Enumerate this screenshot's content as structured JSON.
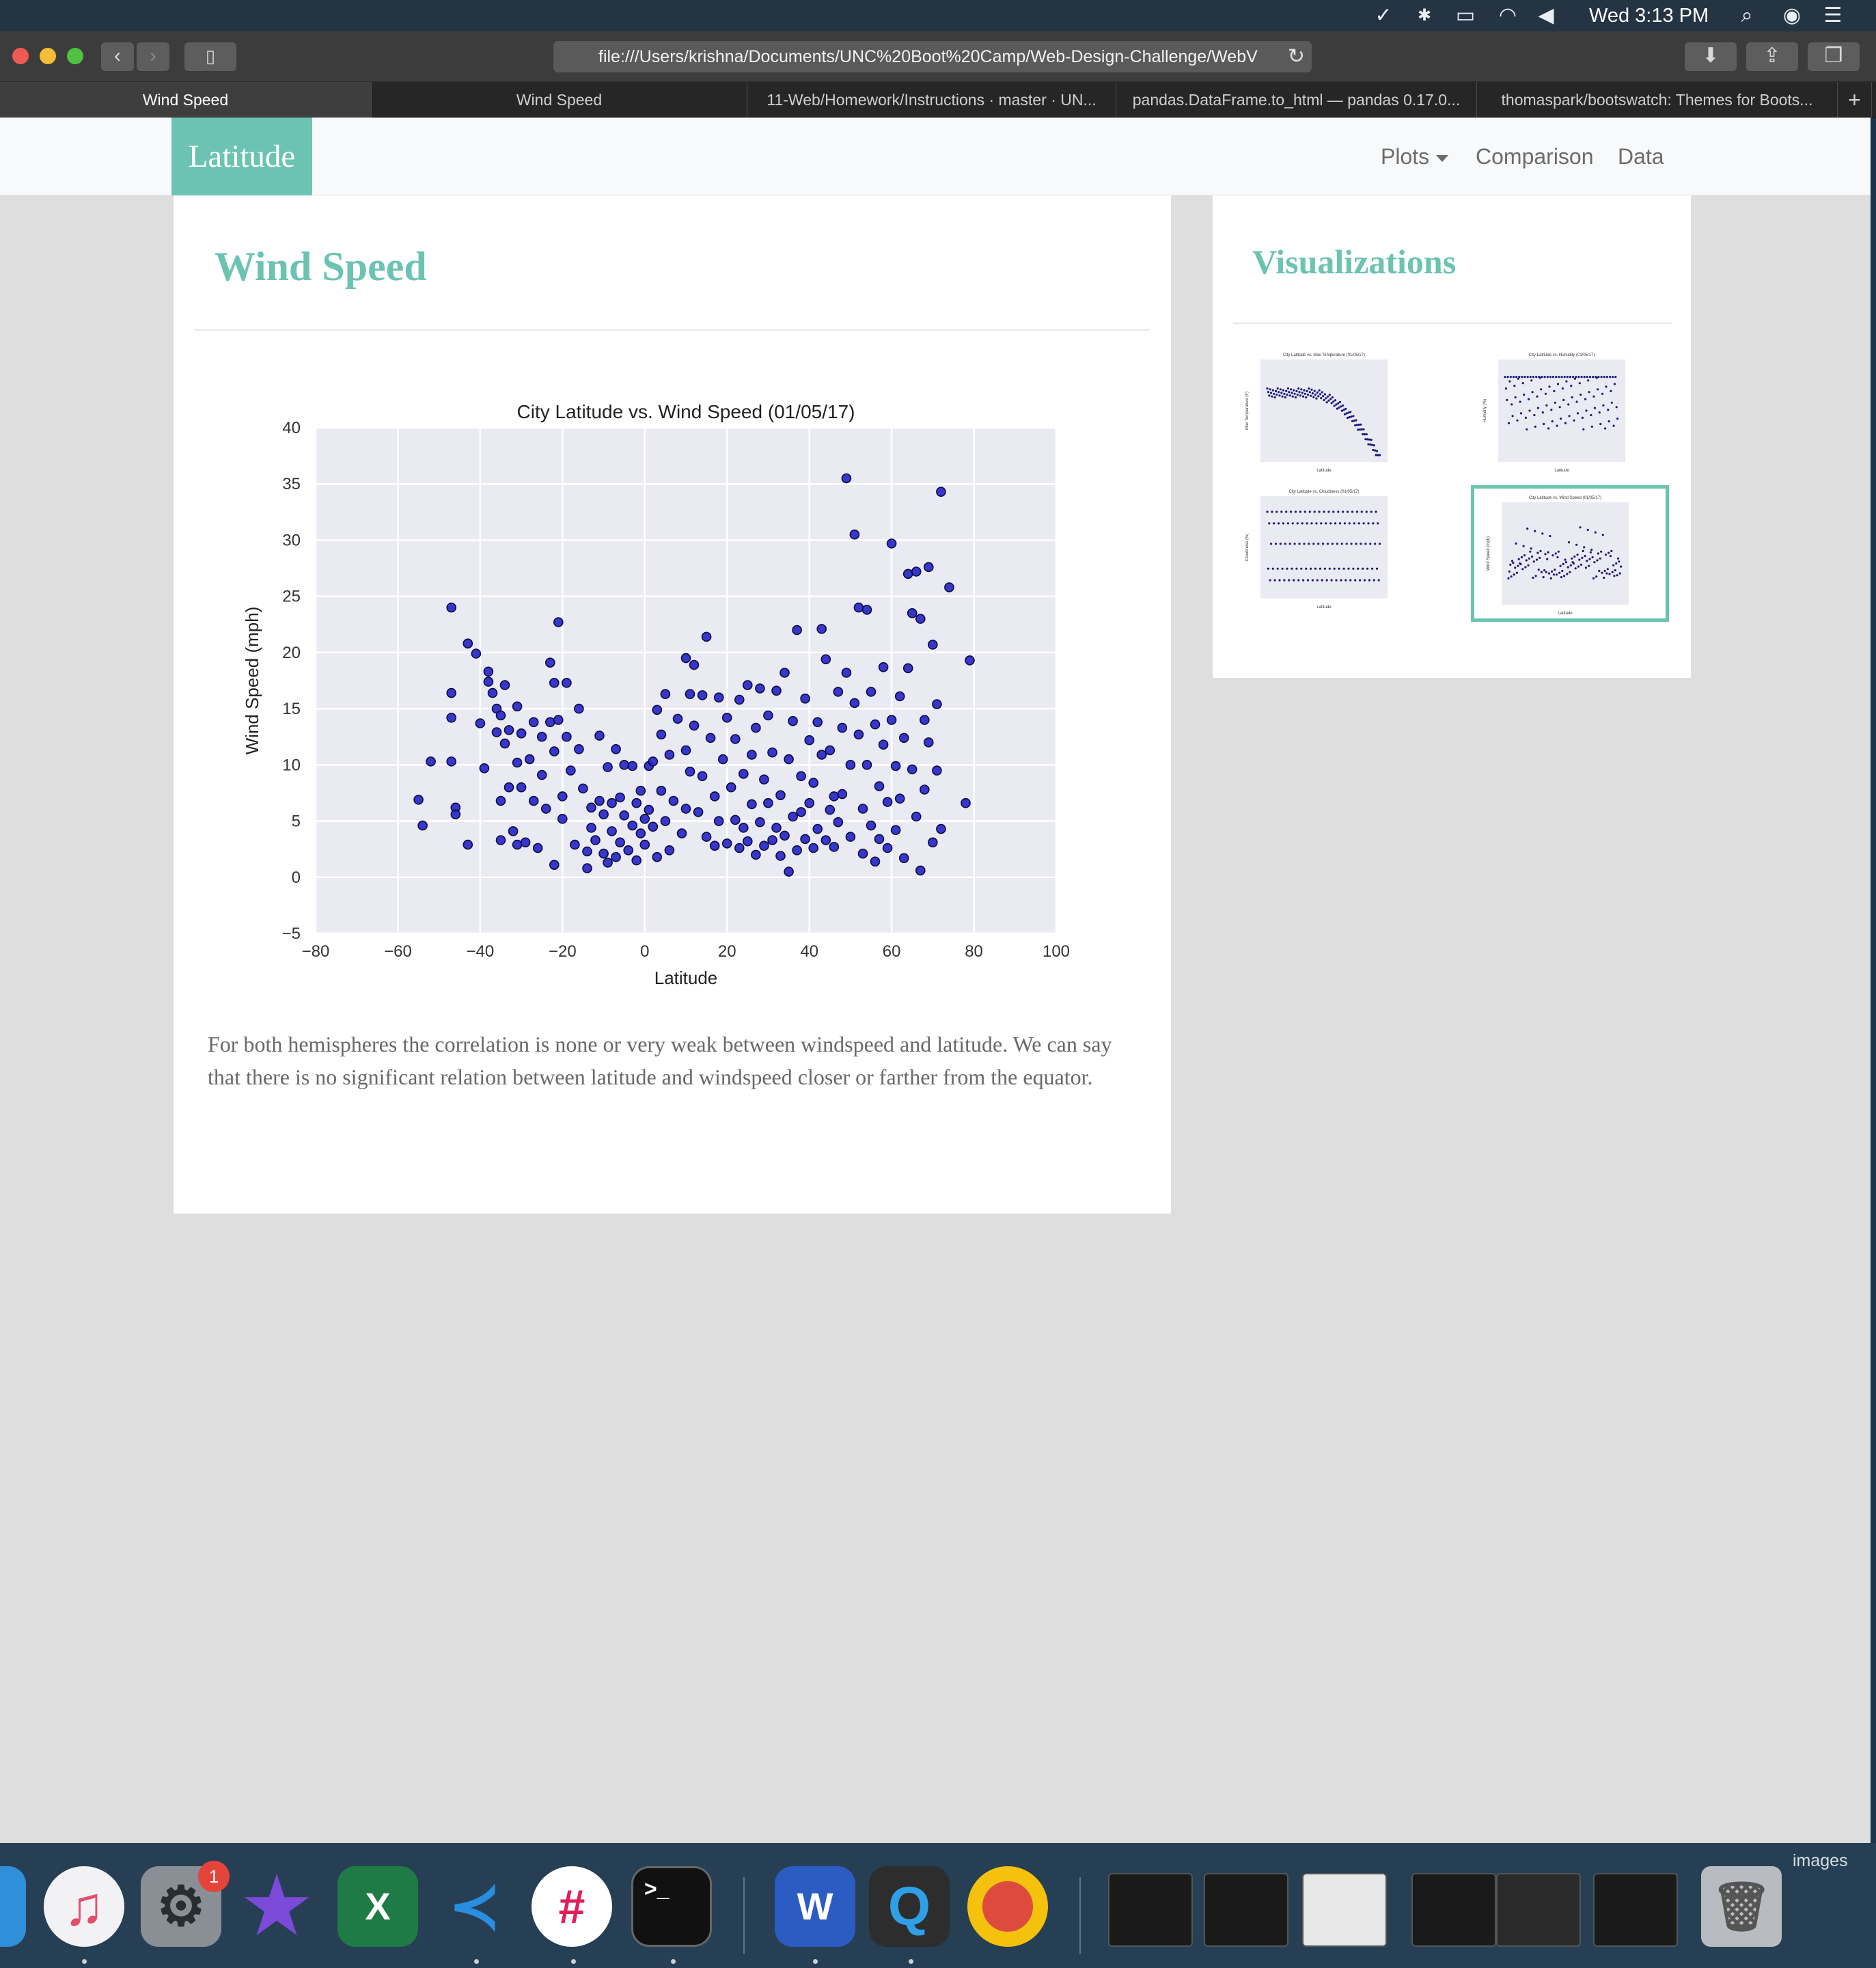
{
  "menubar": {
    "clock": "Wed 3:13 PM",
    "icons": [
      "checkmark-app-icon",
      "bluetooth-icon",
      "airplay-icon",
      "wifi-icon",
      "volume-icon",
      "spotlight-search-icon",
      "siri-icon",
      "notification-center-icon"
    ]
  },
  "browser": {
    "url": "file:///Users/krishna/Documents/UNC%20Boot%20Camp/Web-Design-Challenge/WebV",
    "tabs": [
      {
        "label": "Wind Speed",
        "active": true
      },
      {
        "label": "Wind Speed",
        "active": false
      },
      {
        "label": "11-Web/Homework/Instructions · master · UN...",
        "active": false
      },
      {
        "label": "pandas.DataFrame.to_html — pandas 0.17.0...",
        "active": false
      },
      {
        "label": "thomaspark/bootswatch: Themes for Boots...",
        "active": false
      }
    ],
    "new_tab": "+"
  },
  "navbar": {
    "brand": "Latitude",
    "links": {
      "plots": "Plots",
      "comparison": "Comparison",
      "data": "Data"
    }
  },
  "main": {
    "title": "Wind Speed",
    "text": "For both hemispheres the correlation is none or very weak between windspeed and latitude. We can say that there is no significant relation between latitude and windspeed closer or farther from the equator."
  },
  "sidebar": {
    "title": "Visualizations",
    "thumbnails": [
      {
        "title": "City Latitude vs. Max Temperature (01/05/17)",
        "xlabel": "Latitude",
        "ylabel": "Max Temperature (F)",
        "selected": false
      },
      {
        "title": "City Latitude vs. Humidity (01/05/17)",
        "xlabel": "Latitude",
        "ylabel": "Humidity (%)",
        "selected": false
      },
      {
        "title": "City Latitude vs. Cloudiness (01/05/17)",
        "xlabel": "Latitude",
        "ylabel": "Cloudiness (%)",
        "selected": false
      },
      {
        "title": "City Latitude vs. Wind Speed (01/05/17)",
        "xlabel": "Latitude",
        "ylabel": "Wind Speed (mph)",
        "selected": true
      }
    ]
  },
  "dock": {
    "badge": "1",
    "images_label": "images",
    "apps": [
      "itunes-icon",
      "system-preferences-icon",
      "imovie-icon",
      "excel-icon",
      "vscode-icon",
      "slack-icon",
      "terminal-icon",
      "word-icon",
      "quip-icon",
      "chrome-icon"
    ]
  },
  "colors": {
    "accent": "#6cc3b2",
    "point_fill": "#2424c8",
    "point_edge": "#0a0a40",
    "plot_bg": "#eaeaf2"
  },
  "chart_data": {
    "type": "scatter",
    "title": "City Latitude vs. Wind Speed (01/05/17)",
    "xlabel": "Latitude",
    "ylabel": "Wind Speed (mph)",
    "xlim": [
      -80,
      100
    ],
    "ylim": [
      -5,
      40
    ],
    "xticks": [
      -80,
      -60,
      -40,
      -20,
      0,
      20,
      40,
      60,
      80,
      100
    ],
    "yticks": [
      -5,
      0,
      5,
      10,
      15,
      20,
      25,
      30,
      35,
      40
    ],
    "grid": true,
    "points": [
      [
        -55,
        6.9
      ],
      [
        -54,
        4.6
      ],
      [
        -52,
        10.3
      ],
      [
        -47,
        24.0
      ],
      [
        -47,
        16.4
      ],
      [
        -47,
        14.2
      ],
      [
        -47,
        10.3
      ],
      [
        -46,
        6.2
      ],
      [
        -46,
        5.6
      ],
      [
        -43,
        20.8
      ],
      [
        -43,
        2.9
      ],
      [
        -41,
        19.9
      ],
      [
        -40,
        13.7
      ],
      [
        -39,
        9.7
      ],
      [
        -38,
        18.3
      ],
      [
        -38,
        17.4
      ],
      [
        -37,
        16.4
      ],
      [
        -36,
        12.9
      ],
      [
        -36,
        15.0
      ],
      [
        -35,
        14.4
      ],
      [
        -35,
        6.8
      ],
      [
        -35,
        3.3
      ],
      [
        -34,
        17.1
      ],
      [
        -34,
        11.9
      ],
      [
        -33,
        13.1
      ],
      [
        -33,
        8.0
      ],
      [
        -32,
        4.1
      ],
      [
        -31,
        15.2
      ],
      [
        -31,
        10.2
      ],
      [
        -31,
        2.9
      ],
      [
        -30,
        12.8
      ],
      [
        -30,
        8.0
      ],
      [
        -29,
        3.1
      ],
      [
        -28,
        10.5
      ],
      [
        -27,
        13.8
      ],
      [
        -27,
        6.8
      ],
      [
        -26,
        2.6
      ],
      [
        -25,
        12.5
      ],
      [
        -25,
        9.1
      ],
      [
        -24,
        6.1
      ],
      [
        -23,
        19.1
      ],
      [
        -23,
        13.8
      ],
      [
        -22,
        17.3
      ],
      [
        -22,
        11.2
      ],
      [
        -22,
        1.1
      ],
      [
        -21,
        22.7
      ],
      [
        -21,
        14.0
      ],
      [
        -20,
        7.2
      ],
      [
        -20,
        5.2
      ],
      [
        -19,
        17.3
      ],
      [
        -19,
        12.5
      ],
      [
        -18,
        9.5
      ],
      [
        -17,
        2.9
      ],
      [
        -16,
        15.0
      ],
      [
        -16,
        11.4
      ],
      [
        -15,
        7.9
      ],
      [
        -14,
        2.3
      ],
      [
        -14,
        0.8
      ],
      [
        -13,
        6.2
      ],
      [
        -13,
        4.4
      ],
      [
        -12,
        3.3
      ],
      [
        -11,
        12.6
      ],
      [
        -11,
        6.8
      ],
      [
        -10,
        5.6
      ],
      [
        -10,
        2.1
      ],
      [
        -9,
        9.8
      ],
      [
        -9,
        1.3
      ],
      [
        -8,
        6.6
      ],
      [
        -8,
        4.1
      ],
      [
        -7,
        11.4
      ],
      [
        -7,
        1.8
      ],
      [
        -6,
        7.1
      ],
      [
        -6,
        3.1
      ],
      [
        -5,
        10.0
      ],
      [
        -5,
        5.5
      ],
      [
        -4,
        2.4
      ],
      [
        -3,
        9.9
      ],
      [
        -3,
        4.6
      ],
      [
        -2,
        6.6
      ],
      [
        -2,
        1.5
      ],
      [
        -1,
        3.9
      ],
      [
        -1,
        7.7
      ],
      [
        0,
        5.2
      ],
      [
        0,
        2.9
      ],
      [
        1,
        9.9
      ],
      [
        1,
        6.0
      ],
      [
        2,
        10.3
      ],
      [
        2,
        4.5
      ],
      [
        3,
        14.9
      ],
      [
        3,
        1.8
      ],
      [
        4,
        12.7
      ],
      [
        4,
        7.7
      ],
      [
        5,
        16.3
      ],
      [
        5,
        5.0
      ],
      [
        6,
        10.9
      ],
      [
        6,
        2.4
      ],
      [
        7,
        6.8
      ],
      [
        8,
        14.1
      ],
      [
        9,
        3.9
      ],
      [
        10,
        19.5
      ],
      [
        10,
        11.3
      ],
      [
        10,
        6.1
      ],
      [
        11,
        16.3
      ],
      [
        11,
        9.4
      ],
      [
        12,
        18.9
      ],
      [
        12,
        13.5
      ],
      [
        13,
        5.8
      ],
      [
        14,
        16.2
      ],
      [
        14,
        9.0
      ],
      [
        15,
        21.4
      ],
      [
        15,
        3.6
      ],
      [
        16,
        12.4
      ],
      [
        17,
        7.2
      ],
      [
        17,
        2.8
      ],
      [
        18,
        16.0
      ],
      [
        18,
        5.0
      ],
      [
        19,
        10.5
      ],
      [
        20,
        14.2
      ],
      [
        20,
        3.0
      ],
      [
        21,
        8.0
      ],
      [
        22,
        12.3
      ],
      [
        22,
        5.1
      ],
      [
        23,
        15.8
      ],
      [
        23,
        2.6
      ],
      [
        24,
        9.2
      ],
      [
        24,
        4.4
      ],
      [
        25,
        17.1
      ],
      [
        25,
        3.2
      ],
      [
        26,
        10.9
      ],
      [
        26,
        6.5
      ],
      [
        27,
        13.3
      ],
      [
        27,
        2.0
      ],
      [
        28,
        16.8
      ],
      [
        28,
        4.9
      ],
      [
        29,
        8.7
      ],
      [
        29,
        2.8
      ],
      [
        30,
        14.4
      ],
      [
        30,
        6.6
      ],
      [
        31,
        11.1
      ],
      [
        31,
        3.3
      ],
      [
        32,
        16.6
      ],
      [
        32,
        4.4
      ],
      [
        33,
        7.3
      ],
      [
        33,
        1.9
      ],
      [
        34,
        18.2
      ],
      [
        34,
        3.7
      ],
      [
        35,
        10.5
      ],
      [
        35,
        0.5
      ],
      [
        36,
        13.9
      ],
      [
        36,
        5.4
      ],
      [
        37,
        22.0
      ],
      [
        37,
        2.4
      ],
      [
        38,
        9.0
      ],
      [
        38,
        5.8
      ],
      [
        39,
        15.9
      ],
      [
        39,
        3.4
      ],
      [
        40,
        12.2
      ],
      [
        40,
        6.6
      ],
      [
        41,
        8.4
      ],
      [
        41,
        2.6
      ],
      [
        42,
        13.8
      ],
      [
        42,
        4.3
      ],
      [
        43,
        22.1
      ],
      [
        43,
        10.9
      ],
      [
        44,
        19.4
      ],
      [
        44,
        3.3
      ],
      [
        45,
        11.3
      ],
      [
        45,
        6.0
      ],
      [
        46,
        7.2
      ],
      [
        46,
        2.7
      ],
      [
        47,
        16.5
      ],
      [
        47,
        4.9
      ],
      [
        48,
        13.3
      ],
      [
        48,
        7.4
      ],
      [
        49,
        35.5
      ],
      [
        49,
        18.2
      ],
      [
        50,
        10.0
      ],
      [
        50,
        3.6
      ],
      [
        51,
        30.5
      ],
      [
        51,
        15.5
      ],
      [
        52,
        24.0
      ],
      [
        52,
        12.7
      ],
      [
        53,
        6.1
      ],
      [
        53,
        2.1
      ],
      [
        54,
        23.8
      ],
      [
        54,
        10.0
      ],
      [
        55,
        16.5
      ],
      [
        55,
        4.6
      ],
      [
        56,
        13.6
      ],
      [
        56,
        1.4
      ],
      [
        57,
        8.1
      ],
      [
        57,
        3.4
      ],
      [
        58,
        18.7
      ],
      [
        58,
        11.8
      ],
      [
        59,
        6.7
      ],
      [
        59,
        2.6
      ],
      [
        60,
        29.7
      ],
      [
        60,
        14.0
      ],
      [
        61,
        9.9
      ],
      [
        61,
        4.2
      ],
      [
        62,
        16.1
      ],
      [
        62,
        7.0
      ],
      [
        63,
        12.4
      ],
      [
        63,
        1.7
      ],
      [
        64,
        27.0
      ],
      [
        64,
        18.6
      ],
      [
        65,
        23.5
      ],
      [
        65,
        9.6
      ],
      [
        66,
        27.2
      ],
      [
        66,
        5.4
      ],
      [
        67,
        23.0
      ],
      [
        67,
        0.6
      ],
      [
        68,
        14.0
      ],
      [
        68,
        7.8
      ],
      [
        69,
        27.6
      ],
      [
        69,
        12.0
      ],
      [
        70,
        20.7
      ],
      [
        70,
        3.1
      ],
      [
        71,
        15.4
      ],
      [
        71,
        9.5
      ],
      [
        72,
        34.3
      ],
      [
        72,
        4.3
      ],
      [
        74,
        25.8
      ],
      [
        78,
        6.6
      ],
      [
        79,
        19.3
      ]
    ]
  }
}
